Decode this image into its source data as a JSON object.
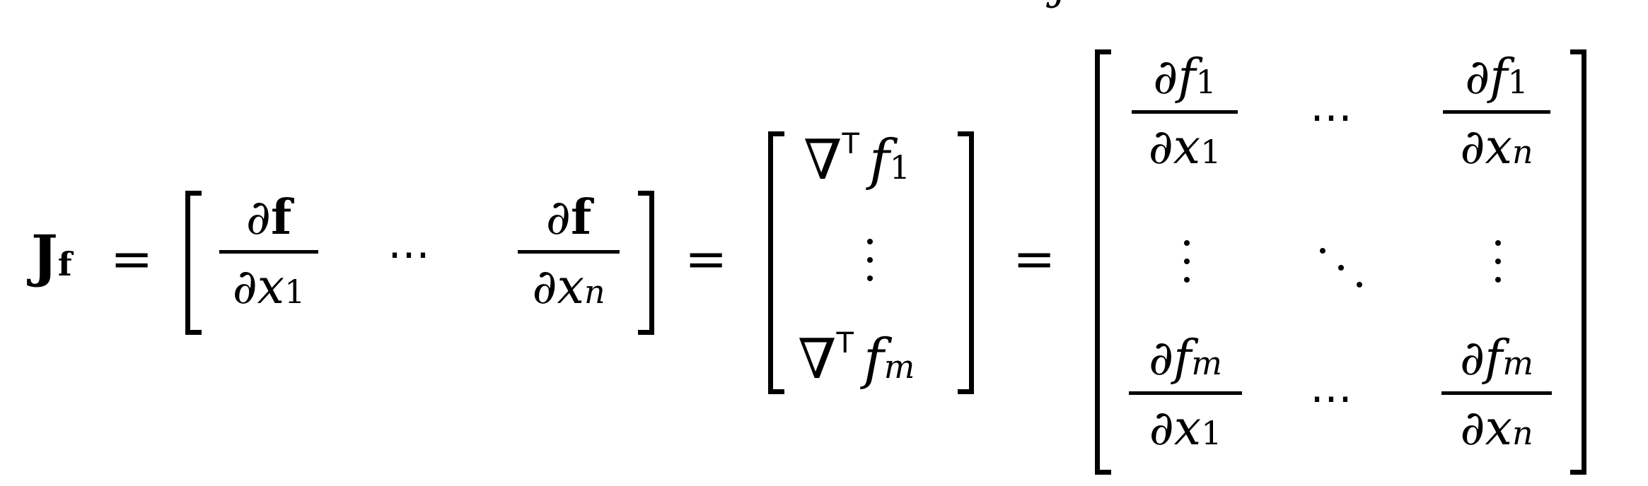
{
  "equation": {
    "lhs_symbol": "J",
    "lhs_sub": "f",
    "equals": "=",
    "partial": "∂",
    "bold_f": "f",
    "var_x": "x",
    "idx_1": "1",
    "idx_n": "n",
    "idx_m": "m",
    "hdots": "⋯",
    "nabla": "∇",
    "transpose": "T",
    "var_f": "f",
    "top_fragment": "j"
  }
}
